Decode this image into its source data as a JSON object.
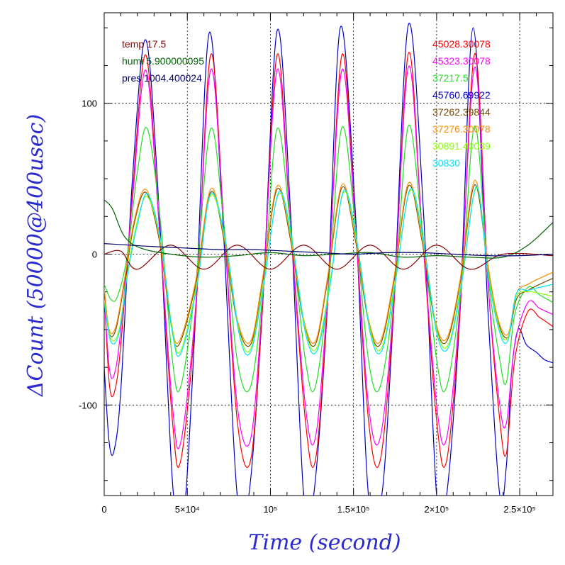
{
  "chart_data": {
    "type": "line",
    "title": "",
    "xlabel": "Time (second)",
    "ylabel": "ΔCount (50000@400usec)",
    "xlim": [
      0,
      270000
    ],
    "ylim": [
      -160,
      160
    ],
    "x_ticks": [
      {
        "value": 0,
        "label": "0"
      },
      {
        "value": 50000,
        "label": "5×10⁴"
      },
      {
        "value": 100000,
        "label": "10⁵"
      },
      {
        "value": 150000,
        "label": "1.5×10⁵"
      },
      {
        "value": 200000,
        "label": "2×10⁵"
      },
      {
        "value": 250000,
        "label": "2.5×10⁵"
      }
    ],
    "y_ticks": [
      {
        "value": 100,
        "label": "100"
      },
      {
        "value": 0,
        "label": "0"
      },
      {
        "value": -100,
        "label": "-100"
      }
    ],
    "grid": true,
    "legend_left": [
      {
        "text": "temp 17.5",
        "color": "#8b0000"
      },
      {
        "text": "humi 5.900000095",
        "color": "#006400"
      },
      {
        "text": "pres 1004.400024",
        "color": "#00006e"
      }
    ],
    "legend_right": [
      {
        "text": "45028.30078",
        "color": "#ff0000"
      },
      {
        "text": "45323.30078",
        "color": "#ff00ff"
      },
      {
        "text": "37217.5",
        "color": "#22dd22"
      },
      {
        "text": "45760.69922",
        "color": "#0000cc"
      },
      {
        "text": "37262.39844",
        "color": "#7a4a00"
      },
      {
        "text": "37276.30078",
        "color": "#ff8c00"
      },
      {
        "text": "30891.40039",
        "color": "#88ff00"
      },
      {
        "text": "30830",
        "color": "#00e5ff"
      }
    ],
    "series": [
      {
        "name": "45760.69922",
        "color": "#0000cc",
        "x": [
          0,
          3000,
          6000,
          10000,
          17000,
          25000,
          33000,
          41000,
          45000,
          49000,
          55000,
          63000,
          71000,
          80000,
          87000,
          95000,
          104000,
          112000,
          120000,
          126000,
          134000,
          142000,
          151000,
          159000,
          167000,
          174000,
          183000,
          192000,
          200000,
          206000,
          214000,
          222000,
          231000,
          238000,
          242000,
          245000,
          249000,
          254000,
          260000,
          265000,
          270000
        ],
        "y": [
          -75,
          -125,
          -130,
          -90,
          50,
          142,
          30,
          -150,
          -160,
          -160,
          -40,
          146,
          30,
          -160,
          -160,
          -40,
          148,
          30,
          -160,
          -160,
          -40,
          150,
          30,
          -160,
          -160,
          -40,
          152,
          30,
          -160,
          -160,
          -40,
          150,
          -40,
          -160,
          -140,
          -80,
          -50,
          -60,
          -65,
          -70,
          -72
        ]
      },
      {
        "name": "45028.30078",
        "color": "#ff0000",
        "x": [
          0,
          3000,
          6000,
          10000,
          17000,
          25000,
          33000,
          41000,
          46000,
          55000,
          64000,
          72000,
          80000,
          88000,
          95000,
          104000,
          112000,
          121000,
          127000,
          134000,
          143000,
          151000,
          159000,
          166000,
          174000,
          183000,
          191000,
          200000,
          206000,
          214000,
          223000,
          231000,
          238000,
          242000,
          247000,
          255000,
          262000,
          270000
        ],
        "y": [
          -25,
          -85,
          -92,
          -60,
          40,
          132,
          20,
          -110,
          -137,
          -40,
          132,
          20,
          -110,
          -137,
          -40,
          132,
          20,
          -110,
          -137,
          -40,
          132,
          20,
          -110,
          -137,
          -40,
          133,
          20,
          -110,
          -137,
          -40,
          133,
          -20,
          -110,
          -132,
          -70,
          -38,
          -42,
          -48
        ]
      },
      {
        "name": "45323.30078",
        "color": "#ff00ff",
        "x": [
          0,
          3000,
          6000,
          10000,
          17000,
          25000,
          33000,
          41000,
          46000,
          55000,
          64000,
          72000,
          80000,
          88000,
          95000,
          104000,
          112000,
          121000,
          127000,
          134000,
          143000,
          151000,
          159000,
          166000,
          174000,
          183000,
          191000,
          200000,
          206000,
          214000,
          223000,
          231000,
          238000,
          242000,
          247000,
          255000,
          262000,
          270000
        ],
        "y": [
          -28,
          -75,
          -80,
          -50,
          36,
          122,
          20,
          -100,
          -125,
          -35,
          122,
          20,
          -100,
          -123,
          -35,
          122,
          20,
          -100,
          -122,
          -35,
          122,
          20,
          -100,
          -122,
          -35,
          124,
          20,
          -100,
          -122,
          -35,
          124,
          -20,
          -100,
          -112,
          -60,
          -32,
          -36,
          -40
        ]
      },
      {
        "name": "37217.5",
        "color": "#22dd22",
        "x": [
          0,
          4000,
          8000,
          14000,
          20000,
          26000,
          34000,
          41000,
          46000,
          55000,
          64000,
          72000,
          80000,
          88000,
          96000,
          104000,
          112000,
          121000,
          127000,
          135000,
          143000,
          151000,
          159000,
          166000,
          175000,
          183000,
          191000,
          200000,
          206000,
          215000,
          223000,
          231000,
          238000,
          242000,
          247000,
          255000,
          262000,
          270000
        ],
        "y": [
          -20,
          -30,
          -28,
          0,
          55,
          83,
          20,
          -70,
          -88,
          -20,
          83,
          20,
          -70,
          -88,
          -20,
          83,
          20,
          -70,
          -88,
          -20,
          84,
          20,
          -70,
          -88,
          -20,
          85,
          20,
          -70,
          -88,
          -20,
          85,
          -15,
          -70,
          -85,
          -40,
          -22,
          -27,
          -32
        ]
      },
      {
        "name": "37262.39844",
        "color": "#7a4a00",
        "x": [
          0,
          3000,
          7000,
          12000,
          18000,
          25000,
          33000,
          40000,
          45000,
          55000,
          64000,
          72000,
          80000,
          88000,
          95000,
          104000,
          112000,
          120000,
          127000,
          134000,
          143000,
          151000,
          159000,
          166000,
          174000,
          183000,
          191000,
          199000,
          206000,
          214000,
          223000,
          231000,
          237000,
          243000,
          248000,
          255000,
          262000,
          270000
        ],
        "y": [
          -24,
          -52,
          -50,
          -20,
          20,
          41,
          10,
          -45,
          -60,
          -20,
          41,
          10,
          -45,
          -60,
          -20,
          43,
          10,
          -45,
          -60,
          -20,
          44,
          10,
          -45,
          -60,
          -20,
          45,
          10,
          -45,
          -58,
          -20,
          46,
          -10,
          -45,
          -55,
          -30,
          -24,
          -20,
          -16
        ]
      },
      {
        "name": "37276.30078",
        "color": "#ff8c00",
        "x": [
          0,
          3000,
          7000,
          12000,
          18000,
          25000,
          33000,
          40000,
          45000,
          55000,
          64000,
          72000,
          80000,
          88000,
          95000,
          104000,
          112000,
          120000,
          127000,
          134000,
          143000,
          151000,
          159000,
          166000,
          174000,
          183000,
          191000,
          199000,
          206000,
          214000,
          223000,
          231000,
          237000,
          243000,
          248000,
          255000,
          262000,
          270000
        ],
        "y": [
          -22,
          -50,
          -48,
          -18,
          22,
          43,
          12,
          -43,
          -58,
          -18,
          43,
          12,
          -43,
          -58,
          -18,
          45,
          12,
          -43,
          -58,
          -18,
          46,
          12,
          -43,
          -58,
          -18,
          47,
          12,
          -43,
          -56,
          -18,
          49,
          -8,
          -43,
          -53,
          -26,
          -20,
          -16,
          -12
        ]
      },
      {
        "name": "30891.40039",
        "color": "#88ff00",
        "x": [
          0,
          4000,
          9000,
          14000,
          20000,
          26000,
          34000,
          41000,
          46000,
          56000,
          64000,
          73000,
          81000,
          88000,
          96000,
          105000,
          113000,
          121000,
          128000,
          136000,
          144000,
          152000,
          160000,
          167000,
          175000,
          184000,
          192000,
          200000,
          207000,
          215000,
          224000,
          231000,
          238000,
          243000,
          248000,
          255000,
          262000,
          270000
        ],
        "y": [
          -30,
          -56,
          -50,
          -12,
          22,
          38,
          8,
          -50,
          -64,
          -18,
          39,
          8,
          -50,
          -63,
          -18,
          40,
          8,
          -50,
          -62,
          -18,
          41,
          8,
          -50,
          -62,
          -18,
          42,
          8,
          -50,
          -60,
          -18,
          44,
          -12,
          -50,
          -55,
          -28,
          -25,
          -26,
          -28
        ]
      },
      {
        "name": "30830",
        "color": "#00e5ff",
        "x": [
          0,
          4000,
          9000,
          14000,
          20000,
          26000,
          34000,
          41000,
          46000,
          56000,
          64000,
          73000,
          81000,
          88000,
          96000,
          105000,
          113000,
          121000,
          128000,
          136000,
          144000,
          152000,
          160000,
          167000,
          175000,
          184000,
          192000,
          200000,
          207000,
          215000,
          224000,
          231000,
          238000,
          243000,
          248000,
          255000,
          262000,
          270000
        ],
        "y": [
          -32,
          -58,
          -52,
          -14,
          20,
          40,
          9,
          -52,
          -66,
          -20,
          40,
          9,
          -52,
          -65,
          -20,
          41,
          9,
          -52,
          -64,
          -20,
          42,
          9,
          -52,
          -64,
          -20,
          43,
          9,
          -52,
          -62,
          -20,
          45,
          -14,
          -52,
          -57,
          -26,
          -24,
          -22,
          -20
        ]
      },
      {
        "name": "temp 17.5",
        "color": "#8b0000",
        "x": [
          0,
          10000,
          20000,
          40000,
          60000,
          80000,
          100000,
          120000,
          140000,
          160000,
          180000,
          200000,
          220000,
          240000,
          270000
        ],
        "y": [
          0,
          2,
          -10,
          6,
          -10,
          6,
          -10,
          6,
          -10,
          6,
          -10,
          6,
          -10,
          0,
          -1
        ]
      },
      {
        "name": "humi 5.900000095",
        "color": "#006400",
        "x": [
          0,
          5000,
          12000,
          22000,
          40000,
          60000,
          80000,
          100000,
          120000,
          140000,
          160000,
          180000,
          200000,
          220000,
          240000,
          255000,
          270000
        ],
        "y": [
          36,
          30,
          12,
          4,
          0,
          -2,
          -1,
          1,
          -1,
          0,
          1,
          -2,
          -1,
          -2,
          -2,
          6,
          21
        ]
      },
      {
        "name": "pres 1004.400024",
        "color": "#00006e",
        "x": [
          0,
          15000,
          30000,
          50000,
          70000,
          90000,
          110000,
          130000,
          150000,
          170000,
          190000,
          210000,
          230000,
          250000,
          270000
        ],
        "y": [
          7,
          6,
          5,
          4,
          3,
          3,
          2,
          1,
          0,
          1,
          1,
          0,
          -1,
          -1,
          0
        ]
      }
    ]
  }
}
